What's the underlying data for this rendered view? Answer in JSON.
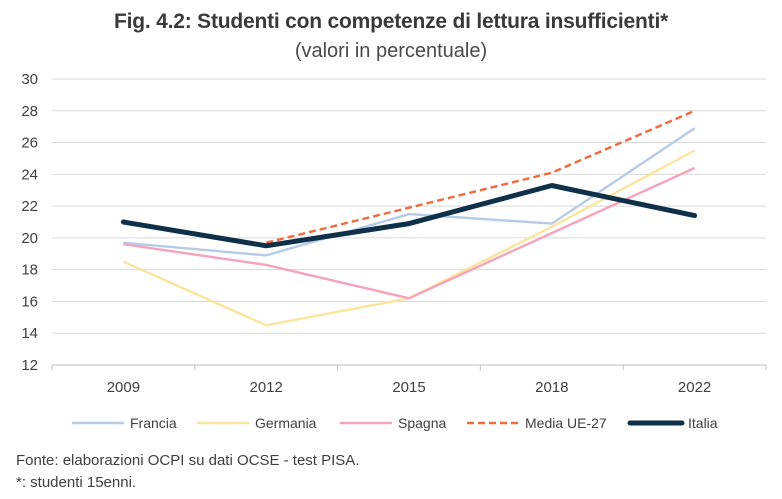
{
  "title": "Fig. 4.2: Studenti con competenze di lettura insufficienti*",
  "subtitle": "(valori in percentuale)",
  "footer": {
    "source": "Fonte: elaborazioni OCPI su dati OCSE - test PISA.",
    "note": "*: studenti 15enni."
  },
  "chart_data": {
    "type": "line",
    "categories": [
      "2009",
      "2012",
      "2015",
      "2018",
      "2022"
    ],
    "ylim": [
      12,
      30
    ],
    "yticks": [
      12,
      14,
      16,
      18,
      20,
      22,
      24,
      26,
      28,
      30
    ],
    "grid": "horizontal",
    "legend_position": "bottom",
    "series": [
      {
        "name": "Francia",
        "color": "#b4cce6",
        "dash": "solid",
        "width": "normal",
        "values": [
          19.7,
          18.9,
          21.5,
          20.9,
          26.9
        ]
      },
      {
        "name": "Germania",
        "color": "#fbe49c",
        "dash": "solid",
        "width": "normal",
        "values": [
          18.5,
          14.5,
          16.2,
          20.7,
          25.5
        ]
      },
      {
        "name": "Spagna",
        "color": "#f5a3bd",
        "dash": "solid",
        "width": "normal",
        "values": [
          19.6,
          18.3,
          16.2,
          20.3,
          24.4
        ]
      },
      {
        "name": "Media UE-27",
        "color": "#f26a3d",
        "dash": "dashed",
        "width": "normal",
        "values": [
          null,
          19.7,
          21.9,
          24.1,
          28.0
        ]
      },
      {
        "name": "Italia",
        "color": "#0e3048",
        "dash": "solid",
        "width": "thick",
        "values": [
          21.0,
          19.5,
          20.9,
          23.3,
          21.4
        ]
      }
    ]
  }
}
